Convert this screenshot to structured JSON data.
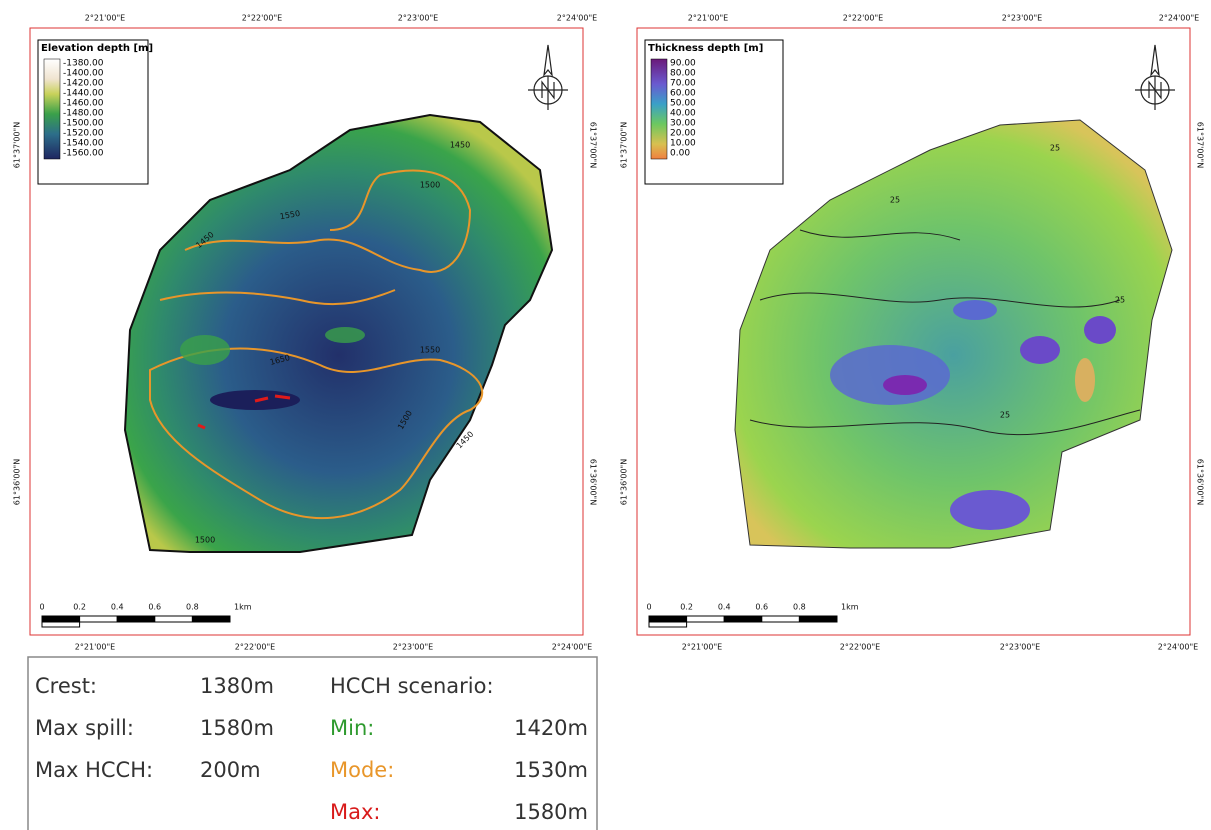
{
  "maps": [
    {
      "legend_title": "Elevation depth [m]",
      "legend_entries": [
        "-1380.00",
        "-1400.00",
        "-1420.00",
        "-1440.00",
        "-1460.00",
        "-1480.00",
        "-1500.00",
        "-1520.00",
        "-1540.00",
        "-1560.00"
      ],
      "top_ticks": [
        "2°21'00\"E",
        "2°22'00\"E",
        "2°23'00\"E",
        "2°24'00\"E"
      ],
      "bottom_ticks": [
        "2°21'00\"E",
        "2°22'00\"E",
        "2°23'00\"E",
        "2°24'00\"E"
      ],
      "left_ticks": [
        "61°37'00\"N",
        "61°36'00\"N"
      ],
      "right_ticks": [
        "61°37'00\"N",
        "61°36'00\"N"
      ],
      "scale_labels": [
        "0",
        "0.2",
        "0.4",
        "0.6",
        "0.8",
        "1km"
      ],
      "contour_labels": [
        "1450",
        "1500",
        "1550",
        "1650",
        "1550",
        "1500",
        "1450",
        "1500",
        "1450"
      ]
    },
    {
      "legend_title": "Thickness depth [m]",
      "legend_entries": [
        "90.00",
        "80.00",
        "70.00",
        "60.00",
        "50.00",
        "40.00",
        "30.00",
        "20.00",
        "10.00",
        "0.00"
      ],
      "top_ticks": [
        "2°21'00\"E",
        "2°22'00\"E",
        "2°23'00\"E",
        "2°24'00\"E"
      ],
      "bottom_ticks": [
        "2°21'00\"E",
        "2°22'00\"E",
        "2°23'00\"E",
        "2°24'00\"E"
      ],
      "left_ticks": [
        "61°37'00\"N",
        "61°36'00\"N"
      ],
      "right_ticks": [
        "61°37'00\"N",
        "61°36'00\"N"
      ],
      "scale_labels": [
        "0",
        "0.2",
        "0.4",
        "0.6",
        "0.8",
        "1km"
      ],
      "contour_labels": [
        "25",
        "25",
        "25",
        "25"
      ]
    }
  ],
  "summary": {
    "left": [
      {
        "label": "Crest:",
        "value": "1380m"
      },
      {
        "label": "Max spill:",
        "value": "1580m"
      },
      {
        "label": "Max HCCH:",
        "value": "200m"
      }
    ],
    "right_title": "HCCH scenario:",
    "right": [
      {
        "label": "Min:",
        "value": "1420m"
      },
      {
        "label": "Mode:",
        "value": "1530m"
      },
      {
        "label": "Max:",
        "value": "1580m"
      }
    ]
  }
}
